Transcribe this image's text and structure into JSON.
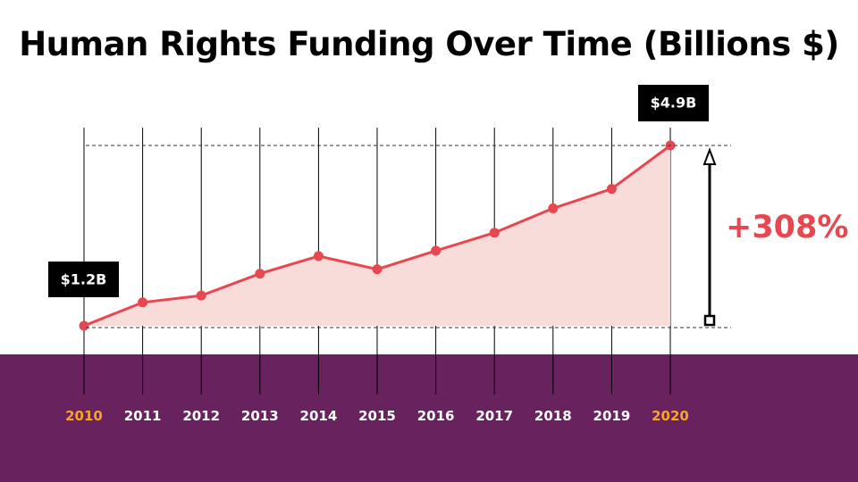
{
  "chart_data": {
    "type": "area",
    "title": "Human Rights Funding Over Time (Billions $)",
    "xlabel": "",
    "ylabel": "",
    "categories": [
      "2010",
      "2011",
      "2012",
      "2013",
      "2014",
      "2015",
      "2016",
      "2017",
      "2018",
      "2019",
      "2020"
    ],
    "values": [
      1.2,
      1.68,
      1.82,
      2.27,
      2.63,
      2.36,
      2.74,
      3.11,
      3.61,
      4.01,
      4.9
    ],
    "ylim": [
      1.2,
      4.9
    ],
    "grid": "vertical",
    "callouts": {
      "start": "$1.2B",
      "end": "$4.9B",
      "change": "+308%"
    },
    "highlighted_categories": [
      "2010",
      "2020"
    ]
  },
  "colors": {
    "line": "#e8474f",
    "fill": "#f7dcd9",
    "band": "#68225d",
    "highlight_tick": "#f6a623",
    "tick": "#ffffff",
    "callout_bg": "#000000",
    "change_text": "#e8474f",
    "grid": "#000000"
  }
}
